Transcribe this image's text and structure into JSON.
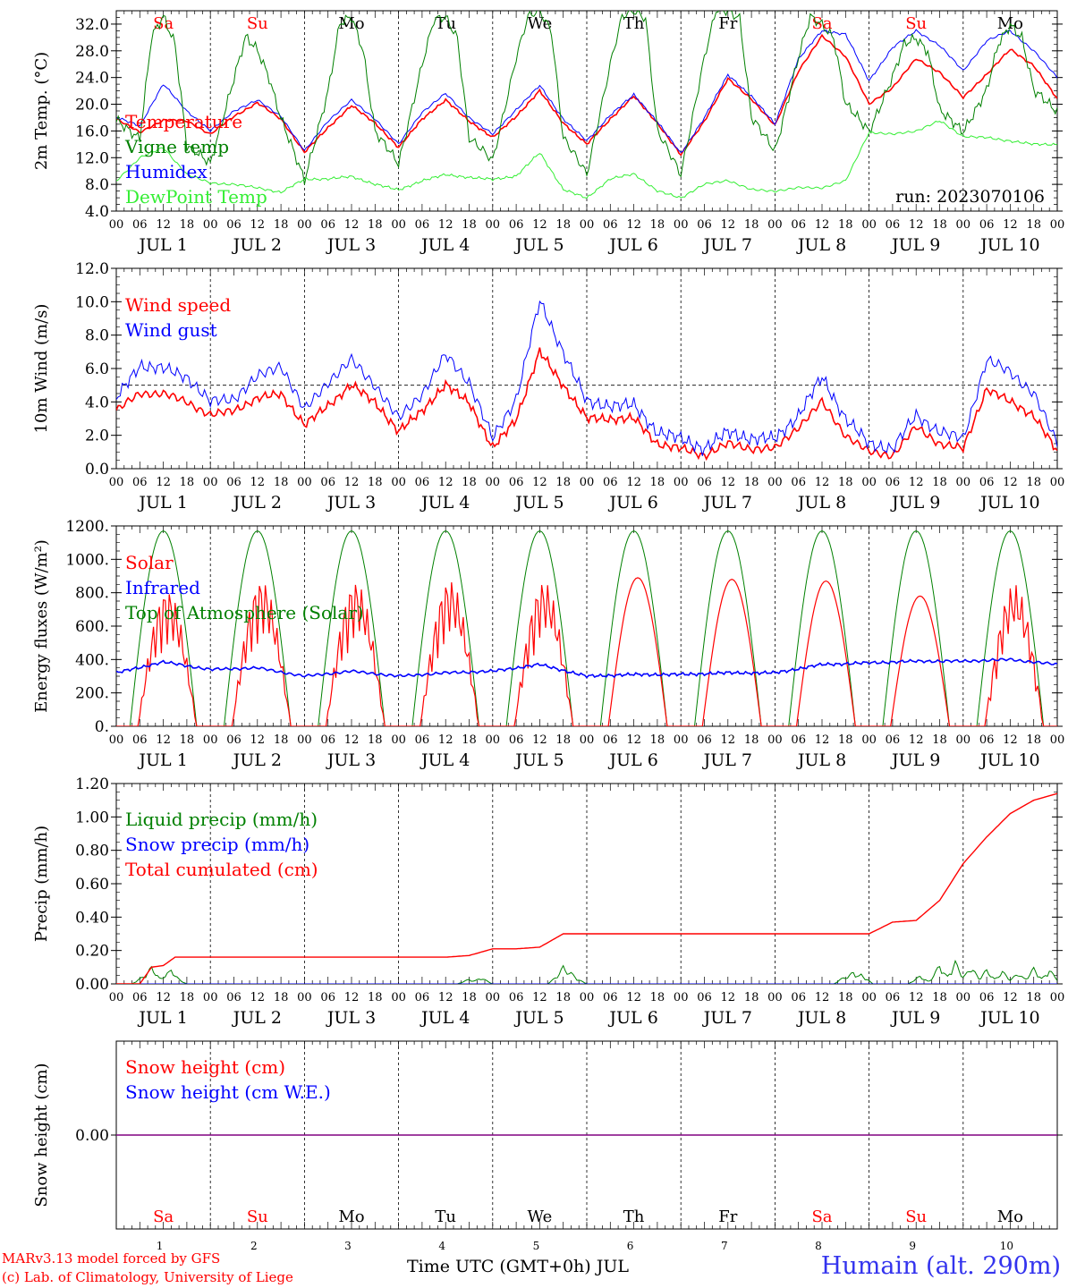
{
  "run_label": "run: 2023070106",
  "credits": [
    "MARv3.13 model forced by GFS",
    "(c) Lab. of Climatology, University of Liege"
  ],
  "x_title": "Time UTC (GMT+0h) JUL",
  "station": "Humain (alt. 290m)",
  "colors": {
    "red": "#ff0000",
    "green": "#008000",
    "blue": "#0000ff",
    "lightgreen": "#33ee33",
    "purple": "#800080"
  },
  "chart_data": {
    "days": [
      "1",
      "2",
      "3",
      "4",
      "5",
      "6",
      "7",
      "8",
      "9",
      "10"
    ],
    "weekdays": [
      {
        "label": "Sa",
        "weekend": true
      },
      {
        "label": "Su",
        "weekend": true
      },
      {
        "label": "Mo",
        "weekend": false
      },
      {
        "label": "Tu",
        "weekend": false
      },
      {
        "label": "We",
        "weekend": false
      },
      {
        "label": "Th",
        "weekend": false
      },
      {
        "label": "Fr",
        "weekend": false
      },
      {
        "label": "Sa",
        "weekend": true
      },
      {
        "label": "Su",
        "weekend": true
      },
      {
        "label": "Mo",
        "weekend": false
      }
    ],
    "hour_ticks": [
      "00",
      "06",
      "12",
      "18"
    ],
    "end_tick": "00",
    "month": "JUL",
    "panels": [
      {
        "id": "temperature",
        "type": "line",
        "ylabel": "2m Temp. (°C)",
        "ylim": [
          4,
          34
        ],
        "yticks": [
          4,
          8,
          12,
          16,
          20,
          24,
          28,
          32
        ],
        "ytick_decimals": 1,
        "legend": [
          "Temperature",
          "Vigne temp",
          "Humidex",
          "DewPoint Temp"
        ],
        "legend_colors": [
          "red",
          "green",
          "blue",
          "lightgreen"
        ],
        "series": [
          {
            "name": "Temperature",
            "color": "red",
            "hours": [
              0,
              6,
              12,
              18,
              24,
              30,
              36,
              42,
              48,
              54,
              60,
              66,
              72,
              78,
              84,
              90,
              96,
              102,
              108,
              114,
              120,
              126,
              132,
              138,
              144,
              150,
              156,
              162,
              168,
              174,
              180,
              186,
              192,
              198,
              204,
              210,
              216,
              222,
              228,
              234,
              240
            ],
            "values": [
              17.8,
              15.8,
              17.6,
              17.5,
              15.5,
              18.2,
              20.2,
              17.8,
              12.8,
              16.5,
              19.8,
              17.2,
              13.5,
              17.8,
              20.6,
              17.5,
              15.0,
              18.2,
              22.0,
              17.2,
              14.0,
              17.8,
              21.2,
              17.2,
              12.4,
              17.5,
              23.8,
              20.8,
              16.8,
              25.0,
              30.2,
              27.2,
              20.0,
              22.5,
              26.8,
              24.8,
              21.0,
              24.5,
              28.2,
              25.8,
              20.8
            ]
          },
          {
            "name": "Humidex",
            "color": "blue",
            "hours": [
              0,
              6,
              12,
              18,
              24,
              30,
              36,
              42,
              48,
              54,
              60,
              66,
              72,
              78,
              84,
              90,
              96,
              102,
              108,
              114,
              120,
              126,
              132,
              138,
              144,
              150,
              156,
              162,
              168,
              174,
              180,
              186,
              192,
              198,
              204,
              210,
              216,
              222,
              228,
              234,
              240
            ],
            "values": [
              18.0,
              16.8,
              23.0,
              19.0,
              16.0,
              19.0,
              20.6,
              18.2,
              13.0,
              17.5,
              20.6,
              17.8,
              14.0,
              18.8,
              21.6,
              18.0,
              15.5,
              19.2,
              22.8,
              17.8,
              14.5,
              18.4,
              21.4,
              17.4,
              12.6,
              18.0,
              24.4,
              21.2,
              17.0,
              26.8,
              31.0,
              30.5,
              23.5,
              28.5,
              31.0,
              28.8,
              25.0,
              29.5,
              31.0,
              28.0,
              24.0
            ]
          },
          {
            "name": "Vigne temp",
            "color": "green",
            "hours": [
              0,
              6,
              9,
              12,
              15,
              18,
              24,
              30,
              33,
              36,
              39,
              42,
              48,
              54,
              57,
              60,
              63,
              66,
              72,
              78,
              81,
              84,
              87,
              90,
              96,
              102,
              105,
              108,
              111,
              114,
              120,
              126,
              129,
              132,
              135,
              138,
              144,
              150,
              153,
              156,
              159,
              162,
              168,
              174,
              177,
              180,
              183,
              186,
              192,
              198,
              201,
              204,
              207,
              210,
              216,
              222,
              225,
              228,
              231,
              234,
              240
            ],
            "values": [
              17.5,
              15.0,
              30.0,
              33.0,
              29.0,
              14.0,
              11.0,
              24.0,
              30.0,
              28.0,
              24.0,
              18.0,
              8.5,
              22.0,
              32.0,
              33.0,
              28.0,
              16.0,
              11.0,
              26.0,
              32.5,
              33.0,
              30.0,
              15.0,
              11.5,
              27.0,
              33.0,
              34.0,
              31.0,
              15.0,
              9.5,
              26.0,
              33.0,
              34.0,
              33.0,
              16.0,
              9.5,
              27.0,
              34.0,
              34.0,
              33.0,
              18.0,
              13.0,
              27.0,
              33.0,
              32.0,
              30.0,
              20.0,
              16.0,
              24.0,
              29.0,
              30.0,
              28.0,
              19.0,
              16.0,
              22.0,
              29.0,
              32.0,
              30.0,
              22.0,
              19.0
            ]
          },
          {
            "name": "DewPoint Temp",
            "color": "lightgreen",
            "hours": [
              0,
              6,
              12,
              18,
              24,
              30,
              36,
              42,
              48,
              54,
              60,
              66,
              72,
              78,
              84,
              90,
              96,
              102,
              108,
              114,
              120,
              126,
              132,
              138,
              144,
              150,
              156,
              162,
              168,
              174,
              180,
              186,
              192,
              198,
              204,
              210,
              216,
              222,
              228,
              234,
              240
            ],
            "values": [
              8.5,
              12.0,
              13.5,
              9.5,
              8.2,
              8.0,
              7.5,
              6.8,
              8.8,
              8.8,
              9.2,
              8.0,
              7.2,
              8.5,
              9.5,
              9.0,
              8.8,
              9.2,
              12.8,
              7.2,
              6.0,
              8.8,
              9.6,
              7.0,
              6.0,
              8.0,
              8.6,
              7.2,
              7.0,
              7.5,
              7.5,
              8.5,
              15.8,
              15.5,
              16.0,
              17.5,
              15.2,
              15.0,
              14.5,
              14.0,
              14.0
            ]
          }
        ]
      },
      {
        "id": "wind",
        "type": "line",
        "ylabel": "10m Wind (m/s)",
        "ylim": [
          0,
          12
        ],
        "yticks": [
          0,
          2,
          4,
          6,
          8,
          10,
          12
        ],
        "ytick_decimals": 1,
        "ref_line": 5,
        "legend": [
          "Wind speed",
          "Wind gust"
        ],
        "legend_colors": [
          "red",
          "blue"
        ],
        "series": [
          {
            "name": "Wind speed",
            "color": "red",
            "hours": [
              0,
              6,
              12,
              18,
              24,
              30,
              36,
              42,
              48,
              54,
              60,
              66,
              72,
              78,
              84,
              90,
              96,
              102,
              108,
              114,
              120,
              126,
              132,
              138,
              144,
              150,
              156,
              162,
              168,
              174,
              180,
              186,
              192,
              198,
              204,
              210,
              216,
              222,
              228,
              234,
              240
            ],
            "values": [
              3.5,
              4.5,
              4.5,
              4.0,
              3.2,
              3.5,
              4.2,
              4.5,
              2.6,
              3.8,
              5.0,
              4.0,
              2.2,
              3.5,
              5.0,
              4.0,
              1.2,
              3.0,
              7.0,
              5.0,
              3.0,
              3.0,
              3.0,
              1.5,
              1.2,
              0.8,
              1.5,
              1.2,
              1.2,
              2.5,
              4.0,
              2.0,
              1.0,
              0.8,
              2.5,
              1.5,
              1.2,
              4.8,
              4.0,
              3.2,
              1.0
            ]
          },
          {
            "name": "Wind gust",
            "color": "blue",
            "hours": [
              0,
              6,
              12,
              18,
              24,
              30,
              36,
              42,
              48,
              54,
              60,
              66,
              72,
              78,
              84,
              90,
              96,
              102,
              108,
              114,
              120,
              126,
              132,
              138,
              144,
              150,
              156,
              162,
              168,
              174,
              180,
              186,
              192,
              198,
              204,
              210,
              216,
              222,
              228,
              234,
              240
            ],
            "values": [
              4.2,
              6.2,
              6.0,
              5.5,
              4.0,
              4.2,
              5.5,
              6.2,
              3.5,
              5.2,
              6.5,
              5.0,
              3.0,
              4.5,
              6.8,
              5.2,
              1.8,
              4.2,
              10.0,
              7.0,
              4.0,
              3.8,
              3.8,
              2.2,
              1.8,
              1.2,
              2.2,
              1.8,
              1.8,
              3.2,
              5.5,
              3.0,
              1.5,
              1.2,
              3.2,
              2.2,
              1.8,
              6.5,
              5.8,
              4.5,
              1.5
            ]
          }
        ]
      },
      {
        "id": "energy",
        "type": "line",
        "ylabel": "Energy fluxes (W/m²)",
        "ylim": [
          0,
          1200
        ],
        "yticks": [
          0,
          200,
          400,
          600,
          800,
          1000,
          1200
        ],
        "ytick_decimals": 0,
        "ytick_suffix": ".",
        "legend": [
          "Solar",
          "Infrared",
          "Top of Atmosphere (Solar)"
        ],
        "legend_colors": [
          "red",
          "blue",
          "green"
        ],
        "toa_peak": 1170,
        "toa_half_width_h": 8.5,
        "toa_noon_h": 12,
        "solar_peaks": [
          820,
          880,
          870,
          880,
          870,
          890,
          880,
          870,
          780,
          850
        ],
        "infrared": {
          "hours": [
            0,
            12,
            24,
            36,
            48,
            60,
            72,
            84,
            96,
            108,
            120,
            132,
            144,
            156,
            168,
            180,
            192,
            204,
            216,
            228,
            240
          ],
          "values": [
            320,
            385,
            340,
            350,
            300,
            330,
            300,
            320,
            330,
            370,
            300,
            310,
            310,
            320,
            320,
            370,
            380,
            390,
            390,
            400,
            370
          ]
        }
      },
      {
        "id": "precip",
        "type": "line",
        "ylabel": "Precip (mm/h)",
        "ylim": [
          0,
          1.2
        ],
        "yticks": [
          0,
          0.2,
          0.4,
          0.6,
          0.8,
          1.0,
          1.2
        ],
        "ytick_decimals": 2,
        "legend": [
          "Liquid precip (mm/h)",
          "Snow precip (mm/h)",
          "Total cumulated (cm)"
        ],
        "legend_colors": [
          "green",
          "blue",
          "red"
        ],
        "cumulated": {
          "hours": [
            0,
            6,
            9,
            12,
            15,
            18,
            24,
            48,
            72,
            84,
            90,
            96,
            102,
            108,
            114,
            120,
            126,
            144,
            168,
            192,
            198,
            204,
            210,
            216,
            222,
            228,
            234,
            240
          ],
          "values": [
            0,
            0,
            0.1,
            0.11,
            0.16,
            0.16,
            0.16,
            0.16,
            0.16,
            0.16,
            0.17,
            0.21,
            0.21,
            0.22,
            0.3,
            0.3,
            0.3,
            0.3,
            0.3,
            0.3,
            0.37,
            0.38,
            0.5,
            0.72,
            0.88,
            1.02,
            1.1,
            1.14
          ]
        },
        "liquid": {
          "hours": [
            7,
            9,
            13,
            14,
            15,
            90,
            93,
            113,
            114,
            115,
            116,
            117,
            186,
            188,
            190,
            205,
            210,
            214,
            218,
            222,
            226,
            230,
            234,
            238
          ],
          "values": [
            0.05,
            0.11,
            0.07,
            0.09,
            0.04,
            0.03,
            0.04,
            0.06,
            0.11,
            0.09,
            0.07,
            0.04,
            0.05,
            0.08,
            0.06,
            0.05,
            0.12,
            0.14,
            0.11,
            0.09,
            0.08,
            0.07,
            0.1,
            0.09
          ]
        }
      },
      {
        "id": "snow",
        "type": "line",
        "ylabel": "Snow height (cm)",
        "ylim": [
          -1,
          1
        ],
        "yticks": [
          0
        ],
        "ytick_decimals": 2,
        "legend": [
          "Snow height (cm)",
          "Snow height (cm W.E.)"
        ],
        "legend_colors": [
          "red",
          "blue"
        ],
        "value": 0
      }
    ]
  }
}
